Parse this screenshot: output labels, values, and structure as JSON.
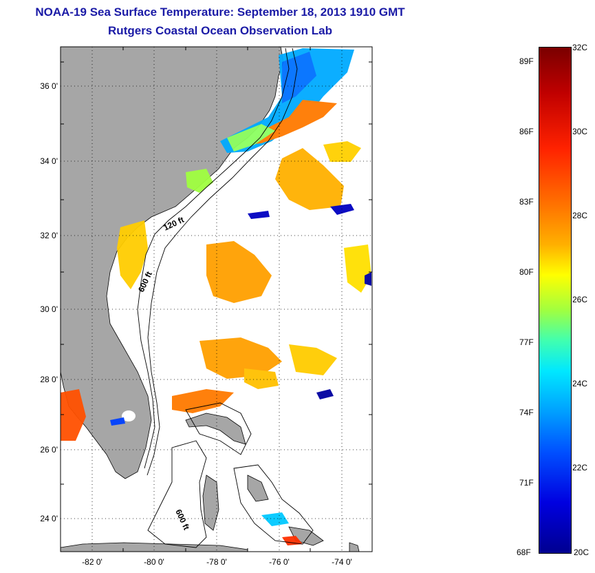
{
  "title": {
    "line1": "NOAA-19 Sea Surface Temperature:  September 18, 2013 1910 GMT",
    "line2": "Rutgers Coastal Ocean Observation Lab"
  },
  "map": {
    "lat_labels": [
      "36 0'",
      "34 0'",
      "32 0'",
      "30 0'",
      "28 0'",
      "26 0'",
      "24 0'"
    ],
    "lon_labels": [
      "-82 0'",
      "-80 0'",
      "-78 0'",
      "-76 0'",
      "-74 0'"
    ],
    "contour_labels": [
      "120 ft",
      "600 ft",
      "600 ft"
    ],
    "land_color": "#a6a6a6"
  },
  "colorbar": {
    "fahrenheit": [
      "89F",
      "86F",
      "83F",
      "80F",
      "77F",
      "74F",
      "71F",
      "68F"
    ],
    "celsius": [
      "32C",
      "30C",
      "28C",
      "26C",
      "24C",
      "22C",
      "20C"
    ]
  }
}
